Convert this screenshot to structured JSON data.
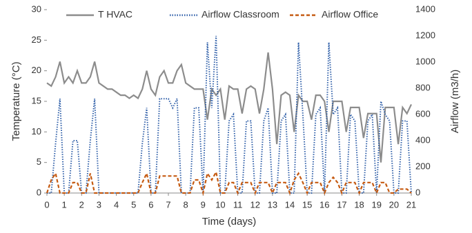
{
  "chart_data": {
    "type": "line",
    "x_label": "Time (days)",
    "y_label": "Temperature (°C)",
    "y2_label": "Airflow (m3/h)",
    "x": [
      0,
      0.25,
      0.5,
      0.75,
      1,
      1.25,
      1.5,
      1.75,
      2,
      2.25,
      2.5,
      2.75,
      3,
      3.25,
      3.5,
      3.75,
      4,
      4.25,
      4.5,
      4.75,
      5,
      5.25,
      5.5,
      5.75,
      6,
      6.25,
      6.5,
      6.75,
      7,
      7.25,
      7.5,
      7.75,
      8,
      8.25,
      8.5,
      8.75,
      9,
      9.25,
      9.5,
      9.75,
      10,
      10.25,
      10.5,
      10.75,
      11,
      11.25,
      11.5,
      11.75,
      12,
      12.25,
      12.5,
      12.75,
      13,
      13.25,
      13.5,
      13.75,
      14,
      14.25,
      14.5,
      14.75,
      15,
      15.25,
      15.5,
      15.75,
      16,
      16.25,
      16.5,
      16.75,
      17,
      17.25,
      17.5,
      17.75,
      18,
      18.25,
      18.5,
      18.75,
      19,
      19.25,
      19.5,
      19.75,
      20,
      20.25,
      20.5,
      20.75,
      21
    ],
    "series": [
      {
        "name": "T HVAC",
        "color": "#8c8c8c",
        "style": "solid",
        "axis": "y",
        "values": [
          18,
          17.5,
          19,
          21.5,
          18,
          19,
          18,
          20,
          18,
          18,
          19,
          21.5,
          18,
          17.5,
          17,
          17,
          16.5,
          16,
          16,
          15.5,
          16,
          15.5,
          17,
          20,
          17,
          16,
          19,
          20,
          18,
          18,
          20,
          21,
          18,
          17.5,
          17,
          17,
          17,
          12,
          17,
          16,
          17,
          12,
          17.5,
          17,
          17,
          13,
          17,
          17.5,
          17,
          13,
          17,
          23,
          17,
          8,
          16,
          16.5,
          16,
          10,
          16,
          15,
          15,
          12,
          16,
          16,
          15,
          10,
          15,
          15,
          15,
          10,
          14,
          14,
          14,
          9,
          13,
          13,
          13,
          5,
          14,
          14,
          14,
          8,
          14,
          13,
          14.5
        ]
      },
      {
        "name": "Airflow Classroom",
        "color": "#2e5ea8",
        "style": "dotted",
        "axis": "y2",
        "values": [
          0,
          0,
          380,
          720,
          0,
          0,
          400,
          400,
          0,
          0,
          400,
          720,
          0,
          0,
          0,
          0,
          0,
          0,
          0,
          0,
          0,
          0,
          380,
          650,
          0,
          0,
          720,
          720,
          720,
          650,
          720,
          0,
          0,
          0,
          650,
          650,
          0,
          1150,
          650,
          1200,
          0,
          0,
          550,
          600,
          0,
          0,
          550,
          550,
          0,
          0,
          550,
          650,
          0,
          0,
          550,
          600,
          0,
          0,
          1150,
          600,
          0,
          0,
          600,
          650,
          0,
          1150,
          600,
          650,
          0,
          0,
          600,
          550,
          0,
          0,
          550,
          600,
          0,
          700,
          600,
          550,
          0,
          0,
          550,
          550,
          0
        ]
      },
      {
        "name": "Airflow Office",
        "color": "#c55a11",
        "style": "dashed",
        "axis": "y2",
        "values": [
          0,
          100,
          150,
          0,
          0,
          0,
          80,
          80,
          0,
          0,
          150,
          0,
          0,
          0,
          0,
          0,
          0,
          0,
          0,
          0,
          0,
          0,
          80,
          150,
          0,
          0,
          130,
          130,
          130,
          130,
          130,
          0,
          0,
          0,
          100,
          100,
          0,
          150,
          100,
          160,
          0,
          0,
          80,
          80,
          0,
          80,
          80,
          80,
          0,
          80,
          80,
          80,
          0,
          80,
          80,
          80,
          0,
          100,
          150,
          80,
          0,
          80,
          80,
          80,
          0,
          80,
          120,
          80,
          0,
          80,
          80,
          80,
          0,
          80,
          80,
          80,
          0,
          80,
          80,
          0,
          0,
          30,
          30,
          30,
          0
        ]
      }
    ],
    "xlim": [
      0,
      21
    ],
    "xticks": [
      0,
      1,
      2,
      3,
      4,
      5,
      6,
      7,
      8,
      9,
      10,
      11,
      12,
      13,
      14,
      15,
      16,
      17,
      18,
      19,
      20,
      21
    ],
    "ylim": [
      0,
      30
    ],
    "yticks": [
      0,
      5,
      10,
      15,
      20,
      25,
      30
    ],
    "y2lim": [
      0,
      1400
    ],
    "y2ticks": [
      0,
      200,
      400,
      600,
      800,
      1000,
      1200,
      1400
    ],
    "legend": "top",
    "grid": false
  }
}
